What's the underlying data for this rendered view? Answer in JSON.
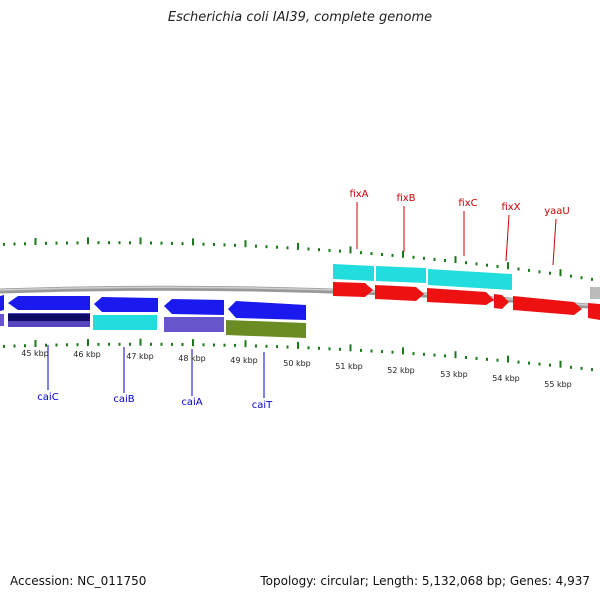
{
  "title": "Escherichia coli IAI39, complete genome",
  "footer": {
    "accession": "Accession: NC_011750",
    "summary": "Topology: circular; Length: 5,132,068 bp; Genes: 4,937"
  },
  "kbp_labels": [
    "45 kbp",
    "46 kbp",
    "47 kbp",
    "48 kbp",
    "49 kbp",
    "50 kbp",
    "51 kbp",
    "52 kbp",
    "53 kbp",
    "54 kbp",
    "55 kbp"
  ],
  "genes_lower": [
    "caiC",
    "caiB",
    "caiA",
    "caiT"
  ],
  "genes_upper": [
    "fixA",
    "fixB",
    "fixC",
    "fixX",
    "yaaU"
  ],
  "colors": {
    "blue_label": "#0000cc",
    "red_label": "#cc0000",
    "blue_arrow": "#1a1aee",
    "cyan": "#22dddd",
    "red": "#ee1111",
    "navy": "#0c0c66",
    "purple": "#6655cc",
    "olive": "#6b8c23",
    "tick_green": "#1a7a1a",
    "backbone": "#888888"
  }
}
